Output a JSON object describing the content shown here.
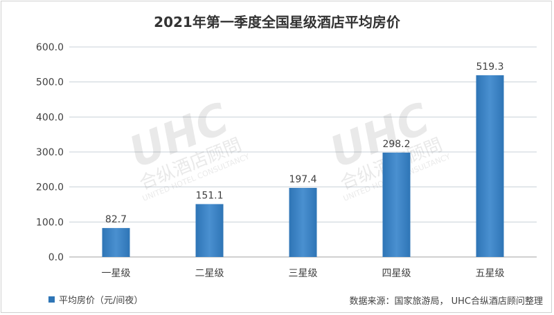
{
  "title": "2021年第一季度全国星级酒店平均房价",
  "source": "数据来源：国家旅游局， UHC合纵酒店顾问整理",
  "watermark": {
    "logo_text": "UHC",
    "cn_text": "合纵酒店顾問",
    "en_text": "UNITED HOTEL CONSULTANCY"
  },
  "colors": {
    "bar": "#2e75b6",
    "bar_light": "#4a90d0",
    "grid": "#c8d0d8",
    "axis_text": "#404040"
  },
  "chart_data": {
    "type": "bar",
    "title": "2021年第一季度全国星级酒店平均房价",
    "categories": [
      "一星级",
      "二星级",
      "三星级",
      "四星级",
      "五星级"
    ],
    "series": [
      {
        "name": "平均房价（元/间夜）",
        "values": [
          82.7,
          151.1,
          197.4,
          298.2,
          519.3
        ]
      }
    ],
    "value_labels": [
      "82.7",
      "151.1",
      "197.4",
      "298.2",
      "519.3"
    ],
    "ylim": [
      0,
      600
    ],
    "yticks": [
      "0.0",
      "100.0",
      "200.0",
      "300.0",
      "400.0",
      "500.0",
      "600.0"
    ],
    "grid": true,
    "legend_position": "bottom-left"
  }
}
